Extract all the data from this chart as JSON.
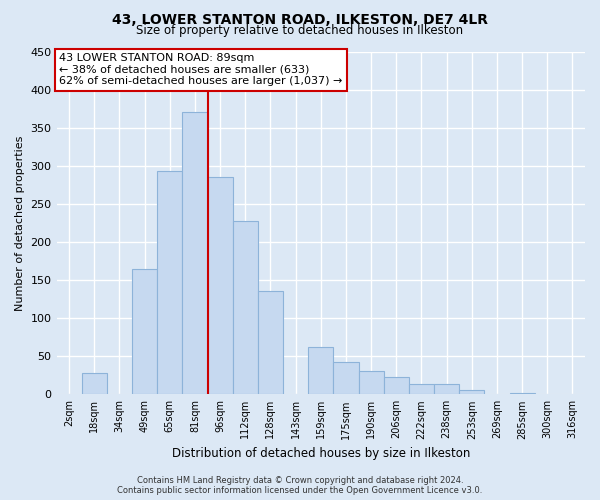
{
  "title": "43, LOWER STANTON ROAD, ILKESTON, DE7 4LR",
  "subtitle": "Size of property relative to detached houses in Ilkeston",
  "xlabel": "Distribution of detached houses by size in Ilkeston",
  "ylabel": "Number of detached properties",
  "bar_labels": [
    "2sqm",
    "18sqm",
    "34sqm",
    "49sqm",
    "65sqm",
    "81sqm",
    "96sqm",
    "112sqm",
    "128sqm",
    "143sqm",
    "159sqm",
    "175sqm",
    "190sqm",
    "206sqm",
    "222sqm",
    "238sqm",
    "253sqm",
    "269sqm",
    "285sqm",
    "300sqm",
    "316sqm"
  ],
  "bar_values": [
    0,
    28,
    0,
    165,
    293,
    370,
    285,
    228,
    135,
    0,
    62,
    42,
    30,
    23,
    14,
    14,
    5,
    0,
    2,
    0,
    0
  ],
  "bar_color": "#c6d9f0",
  "bar_edge_color": "#8db3d9",
  "vline_color": "#cc0000",
  "ylim": [
    0,
    450
  ],
  "yticks": [
    0,
    50,
    100,
    150,
    200,
    250,
    300,
    350,
    400,
    450
  ],
  "annotation_title": "43 LOWER STANTON ROAD: 89sqm",
  "annotation_line1": "← 38% of detached houses are smaller (633)",
  "annotation_line2": "62% of semi-detached houses are larger (1,037) →",
  "annotation_box_color": "#ffffff",
  "annotation_box_edge": "#cc0000",
  "footer1": "Contains HM Land Registry data © Crown copyright and database right 2024.",
  "footer2": "Contains public sector information licensed under the Open Government Licence v3.0.",
  "bg_color": "#dce8f5",
  "plot_bg_color": "#dce8f5",
  "grid_color": "#ffffff"
}
